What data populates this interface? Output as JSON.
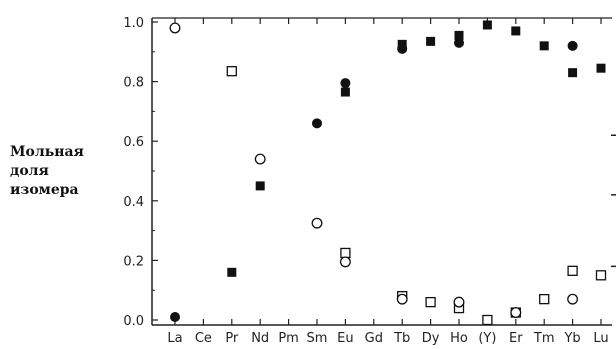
{
  "chart_data": {
    "type": "scatter",
    "ylabel_lines": [
      "Мольная",
      "доля",
      "изомера"
    ],
    "categories": [
      "La",
      "Ce",
      "Pr",
      "Nd",
      "Pm",
      "Sm",
      "Eu",
      "Gd",
      "Tb",
      "Dy",
      "Ho",
      "(Y)",
      "Er",
      "Tm",
      "Yb",
      "Lu"
    ],
    "ylim": [
      0,
      1.0
    ],
    "yticks": [
      "0.0",
      "0.2",
      "0.4",
      "0.6",
      "0.8",
      "1.0"
    ],
    "ytick_values": [
      0,
      0.2,
      0.4,
      0.6,
      0.8,
      1.0
    ],
    "grid": false,
    "series": [
      {
        "marker": "filled-square",
        "points": [
          {
            "x": "Pr",
            "y": 0.16
          },
          {
            "x": "Nd",
            "y": 0.45
          },
          {
            "x": "Eu",
            "y": 0.765
          },
          {
            "x": "Tb",
            "y": 0.925
          },
          {
            "x": "Dy",
            "y": 0.935
          },
          {
            "x": "Ho",
            "y": 0.955
          },
          {
            "x": "(Y)",
            "y": 0.99
          },
          {
            "x": "Er",
            "y": 0.97
          },
          {
            "x": "Tm",
            "y": 0.92
          },
          {
            "x": "Yb",
            "y": 0.83
          },
          {
            "x": "Lu",
            "y": 0.845
          }
        ]
      },
      {
        "marker": "filled-circle",
        "points": [
          {
            "x": "La",
            "y": 0.01
          },
          {
            "x": "Sm",
            "y": 0.66
          },
          {
            "x": "Eu",
            "y": 0.795
          },
          {
            "x": "Tb",
            "y": 0.91
          },
          {
            "x": "Ho",
            "y": 0.93
          },
          {
            "x": "Yb",
            "y": 0.92
          }
        ]
      },
      {
        "marker": "open-square",
        "points": [
          {
            "x": "Pr",
            "y": 0.835
          },
          {
            "x": "Eu",
            "y": 0.225
          },
          {
            "x": "Tb",
            "y": 0.08
          },
          {
            "x": "Dy",
            "y": 0.06
          },
          {
            "x": "Ho",
            "y": 0.04
          },
          {
            "x": "(Y)",
            "y": 0.0
          },
          {
            "x": "Er",
            "y": 0.025
          },
          {
            "x": "Tm",
            "y": 0.07
          },
          {
            "x": "Yb",
            "y": 0.165
          },
          {
            "x": "Lu",
            "y": 0.15
          }
        ]
      },
      {
        "marker": "open-circle",
        "points": [
          {
            "x": "La",
            "y": 0.98
          },
          {
            "x": "Nd",
            "y": 0.54
          },
          {
            "x": "Sm",
            "y": 0.325
          },
          {
            "x": "Eu",
            "y": 0.195
          },
          {
            "x": "Tb",
            "y": 0.07
          },
          {
            "x": "Ho",
            "y": 0.06
          },
          {
            "x": "Er",
            "y": 0.025
          },
          {
            "x": "Yb",
            "y": 0.07
          }
        ]
      }
    ]
  }
}
